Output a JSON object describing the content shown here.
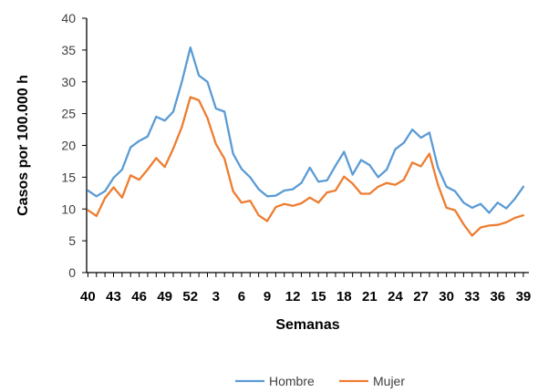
{
  "chart_data": {
    "type": "line",
    "xlabel": "Semanas",
    "ylabel": "Casos por 100.000 h",
    "ylim": [
      0,
      40
    ],
    "yticks": [
      0,
      5,
      10,
      15,
      20,
      25,
      30,
      35,
      40
    ],
    "x": [
      40,
      41,
      42,
      43,
      44,
      45,
      46,
      47,
      48,
      49,
      50,
      51,
      52,
      1,
      2,
      3,
      4,
      5,
      6,
      7,
      8,
      9,
      10,
      11,
      12,
      13,
      14,
      15,
      16,
      17,
      18,
      19,
      20,
      21,
      22,
      23,
      24,
      25,
      26,
      27,
      28,
      29,
      30,
      31,
      32,
      33,
      34,
      35,
      36,
      37,
      38,
      39
    ],
    "xtick_labels": [
      "40",
      "43",
      "46",
      "49",
      "52",
      "3",
      "6",
      "9",
      "12",
      "15",
      "18",
      "21",
      "24",
      "27",
      "30",
      "33",
      "36",
      "39"
    ],
    "grid": false,
    "legend_position": "bottom-center",
    "series": [
      {
        "name": "Hombre",
        "color": "#5B9BD5",
        "values": [
          12.9,
          12.0,
          12.8,
          14.9,
          16.2,
          19.7,
          20.7,
          21.4,
          24.5,
          23.9,
          25.3,
          30.0,
          35.4,
          31.0,
          30.0,
          25.8,
          25.3,
          18.7,
          16.3,
          15.0,
          13.1,
          12.0,
          12.1,
          12.9,
          13.1,
          14.1,
          16.5,
          14.3,
          14.5,
          16.8,
          19.0,
          15.4,
          17.7,
          16.9,
          15.0,
          16.2,
          19.4,
          20.4,
          22.5,
          21.2,
          22.0,
          16.5,
          13.5,
          12.8,
          11.0,
          10.2,
          10.8,
          9.4,
          11.0,
          10.1,
          11.6,
          13.5
        ]
      },
      {
        "name": "Mujer",
        "color": "#ED7D31",
        "values": [
          9.8,
          8.9,
          11.7,
          13.4,
          11.8,
          15.3,
          14.6,
          16.2,
          18.0,
          16.6,
          19.5,
          22.9,
          27.6,
          27.1,
          24.3,
          20.2,
          17.9,
          12.8,
          11.0,
          11.3,
          9.0,
          8.1,
          10.3,
          10.8,
          10.5,
          10.9,
          11.8,
          11.0,
          12.6,
          12.9,
          15.1,
          14.0,
          12.4,
          12.4,
          13.5,
          14.1,
          13.8,
          14.6,
          17.3,
          16.7,
          18.7,
          13.8,
          10.2,
          9.8,
          7.6,
          5.8,
          7.1,
          7.4,
          7.5,
          7.9,
          8.6,
          9.0
        ]
      }
    ]
  }
}
